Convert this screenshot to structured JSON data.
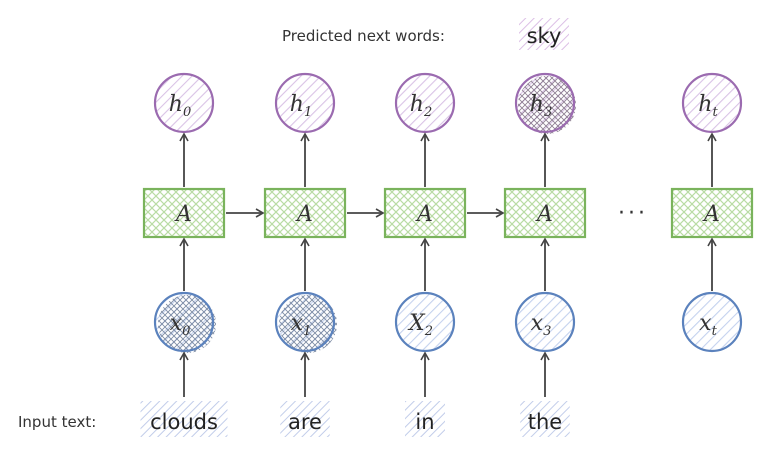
{
  "header": {
    "predicted_label": "Predicted next words:",
    "predicted_word": "sky"
  },
  "footer": {
    "input_label": "Input text:"
  },
  "cell_label": "A",
  "ellipsis": "···",
  "colors": {
    "hidden": "#9b6bb0",
    "cell": "#7ab35c",
    "input": "#5b82bd",
    "arrow": "#444444",
    "word_hatch": "#b9c6e6",
    "sky_hatch": "#d6b7e0"
  },
  "timesteps": [
    {
      "hidden": {
        "main": "h",
        "sub": "0"
      },
      "input": {
        "main": "x",
        "sub": "0"
      },
      "word": "clouds",
      "input_active": true,
      "hidden_active": false
    },
    {
      "hidden": {
        "main": "h",
        "sub": "1"
      },
      "input": {
        "main": "x",
        "sub": "1"
      },
      "word": "are",
      "input_active": true,
      "hidden_active": false
    },
    {
      "hidden": {
        "main": "h",
        "sub": "2"
      },
      "input": {
        "main": "X",
        "sub": "2"
      },
      "word": "in",
      "input_active": false,
      "hidden_active": false
    },
    {
      "hidden": {
        "main": "h",
        "sub": "3"
      },
      "input": {
        "main": "x",
        "sub": "3"
      },
      "word": "the",
      "input_active": false,
      "hidden_active": true
    },
    {
      "hidden": {
        "main": "h",
        "sub": "t"
      },
      "input": {
        "main": "x",
        "sub": "t"
      },
      "word": "",
      "input_active": false,
      "hidden_active": false
    }
  ]
}
